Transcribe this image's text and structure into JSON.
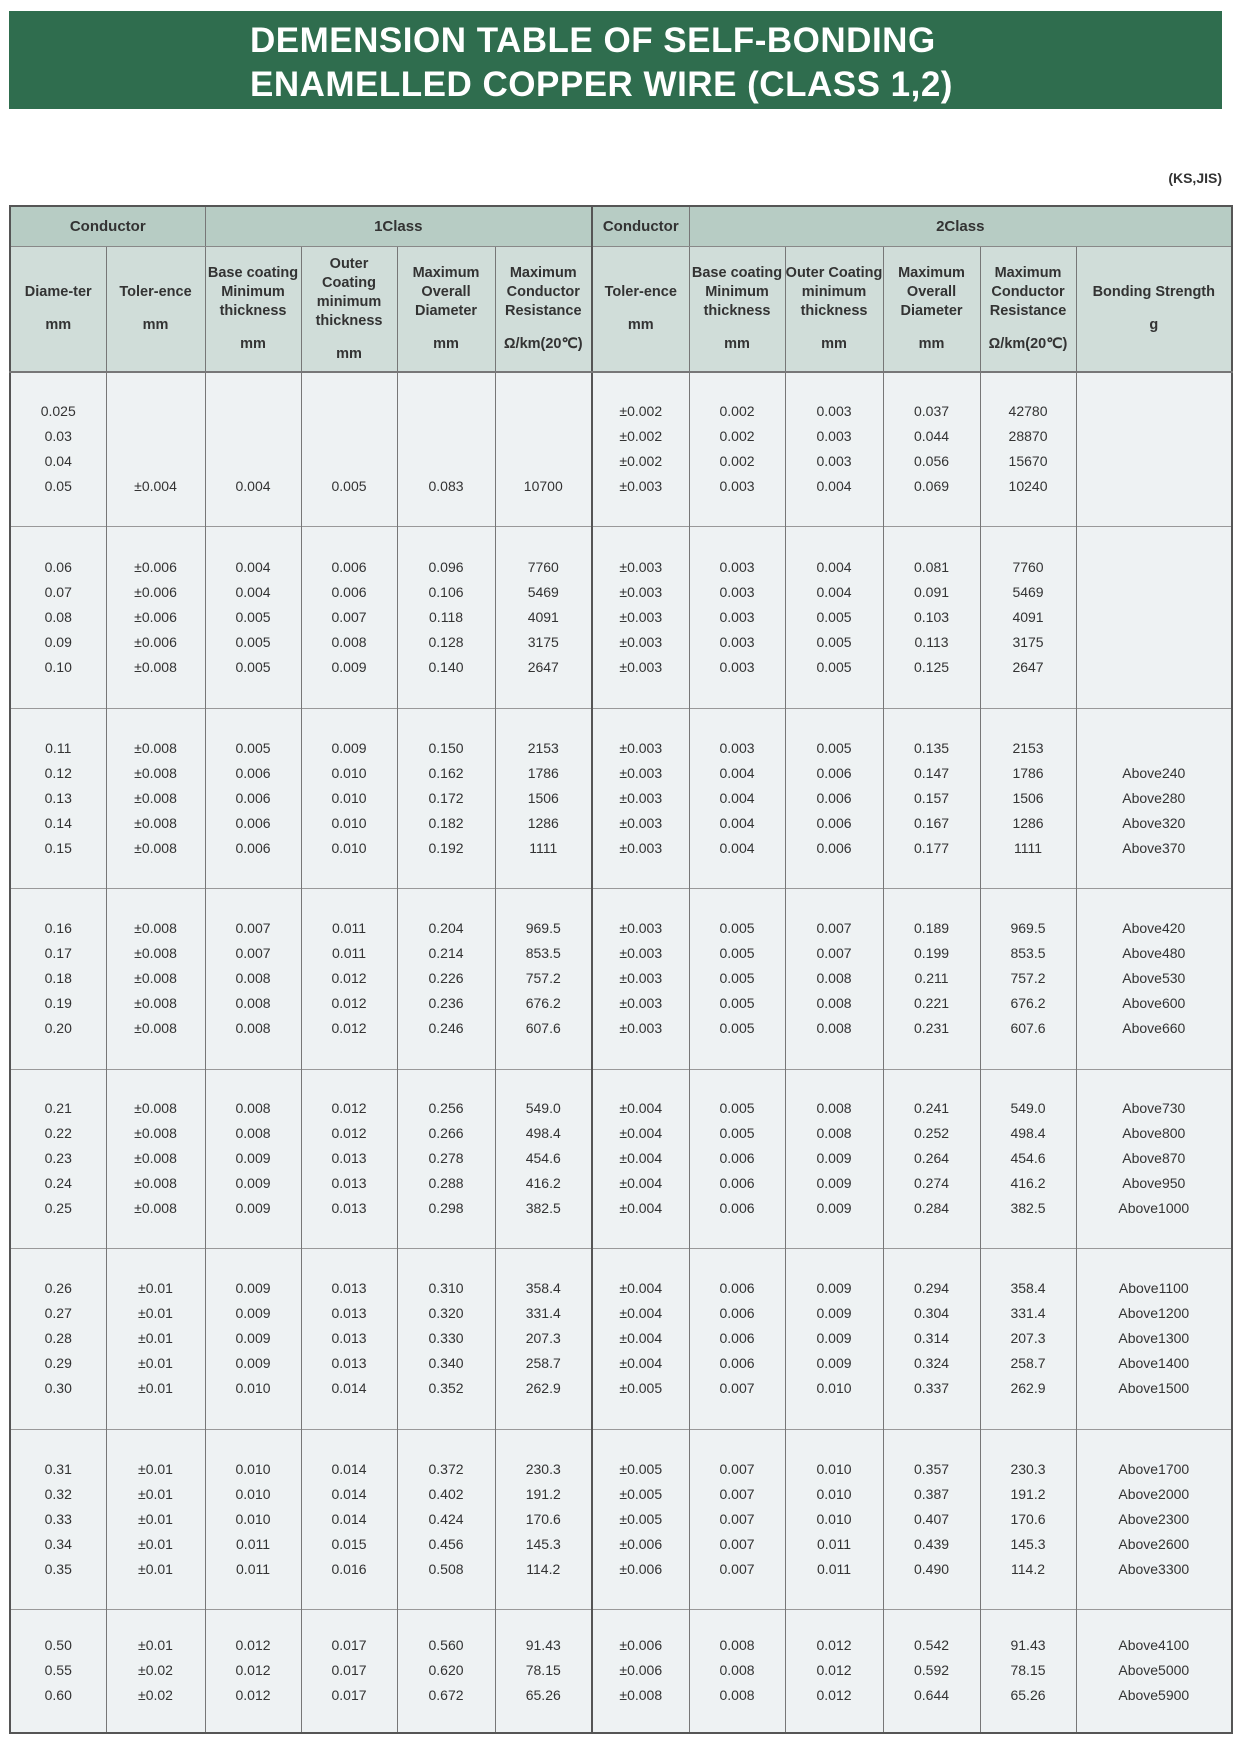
{
  "title": {
    "line1": "DEMENSION TABLE OF SELF-BONDING",
    "line2": "ENAMELLED COPPER WIRE (CLASS 1,2)"
  },
  "standard": "(KS,JIS)",
  "colors": {
    "title_bar": "#2f6d4e",
    "header": "#b7ccc4",
    "subheader": "#d0ddd9",
    "body": "#eef2f3"
  },
  "header": {
    "conductor1": "Conductor",
    "class1": "1Class",
    "conductor2": "Conductor",
    "class2": "2Class",
    "columns": [
      {
        "label": "Diame-ter",
        "unit": "mm"
      },
      {
        "label": "Toler-ence",
        "unit": "mm"
      },
      {
        "label": "Base coating Minimum thickness",
        "unit": "mm"
      },
      {
        "label": "Outer Coating minimum thickness",
        "unit": "mm"
      },
      {
        "label": "Maximum Overall Diameter",
        "unit": "mm"
      },
      {
        "label": "Maximum Conductor Resistance",
        "unit": "Ω/km(20℃)"
      },
      {
        "label": "Toler-ence",
        "unit": "mm"
      },
      {
        "label": "Base coating Minimum thickness",
        "unit": "mm"
      },
      {
        "label": "Outer Coating minimum thickness",
        "unit": "mm"
      },
      {
        "label": "Maximum Overall Diameter",
        "unit": "mm"
      },
      {
        "label": "Maximum Conductor Resistance",
        "unit": "Ω/km(20℃)"
      },
      {
        "label": "Bonding Strength",
        "unit": "g"
      }
    ]
  },
  "groups": [
    [
      [
        "0.025",
        "",
        "",
        "",
        "",
        "",
        "±0.002",
        "0.002",
        "0.003",
        "0.037",
        "42780",
        ""
      ],
      [
        "0.03",
        "",
        "",
        "",
        "",
        "",
        "±0.002",
        "0.002",
        "0.003",
        "0.044",
        "28870",
        ""
      ],
      [
        "0.04",
        "",
        "",
        "",
        "",
        "",
        "±0.002",
        "0.002",
        "0.003",
        "0.056",
        "15670",
        ""
      ],
      [
        "0.05",
        "±0.004",
        "0.004",
        "0.005",
        "0.083",
        "10700",
        "±0.003",
        "0.003",
        "0.004",
        "0.069",
        "10240",
        ""
      ]
    ],
    [
      [
        "0.06",
        "±0.006",
        "0.004",
        "0.006",
        "0.096",
        "7760",
        "±0.003",
        "0.003",
        "0.004",
        "0.081",
        "7760",
        ""
      ],
      [
        "0.07",
        "±0.006",
        "0.004",
        "0.006",
        "0.106",
        "5469",
        "±0.003",
        "0.003",
        "0.004",
        "0.091",
        "5469",
        ""
      ],
      [
        "0.08",
        "±0.006",
        "0.005",
        "0.007",
        "0.118",
        "4091",
        "±0.003",
        "0.003",
        "0.005",
        "0.103",
        "4091",
        ""
      ],
      [
        "0.09",
        "±0.006",
        "0.005",
        "0.008",
        "0.128",
        "3175",
        "±0.003",
        "0.003",
        "0.005",
        "0.113",
        "3175",
        ""
      ],
      [
        "0.10",
        "±0.008",
        "0.005",
        "0.009",
        "0.140",
        "2647",
        "±0.003",
        "0.003",
        "0.005",
        "0.125",
        "2647",
        ""
      ]
    ],
    [
      [
        "0.11",
        "±0.008",
        "0.005",
        "0.009",
        "0.150",
        "2153",
        "±0.003",
        "0.003",
        "0.005",
        "0.135",
        "2153",
        ""
      ],
      [
        "0.12",
        "±0.008",
        "0.006",
        "0.010",
        "0.162",
        "1786",
        "±0.003",
        "0.004",
        "0.006",
        "0.147",
        "1786",
        "Above240"
      ],
      [
        "0.13",
        "±0.008",
        "0.006",
        "0.010",
        "0.172",
        "1506",
        "±0.003",
        "0.004",
        "0.006",
        "0.157",
        "1506",
        "Above280"
      ],
      [
        "0.14",
        "±0.008",
        "0.006",
        "0.010",
        "0.182",
        "1286",
        "±0.003",
        "0.004",
        "0.006",
        "0.167",
        "1286",
        "Above320"
      ],
      [
        "0.15",
        "±0.008",
        "0.006",
        "0.010",
        "0.192",
        "1111",
        "±0.003",
        "0.004",
        "0.006",
        "0.177",
        "1111",
        "Above370"
      ]
    ],
    [
      [
        "0.16",
        "±0.008",
        "0.007",
        "0.011",
        "0.204",
        "969.5",
        "±0.003",
        "0.005",
        "0.007",
        "0.189",
        "969.5",
        "Above420"
      ],
      [
        "0.17",
        "±0.008",
        "0.007",
        "0.011",
        "0.214",
        "853.5",
        "±0.003",
        "0.005",
        "0.007",
        "0.199",
        "853.5",
        "Above480"
      ],
      [
        "0.18",
        "±0.008",
        "0.008",
        "0.012",
        "0.226",
        "757.2",
        "±0.003",
        "0.005",
        "0.008",
        "0.211",
        "757.2",
        "Above530"
      ],
      [
        "0.19",
        "±0.008",
        "0.008",
        "0.012",
        "0.236",
        "676.2",
        "±0.003",
        "0.005",
        "0.008",
        "0.221",
        "676.2",
        "Above600"
      ],
      [
        "0.20",
        "±0.008",
        "0.008",
        "0.012",
        "0.246",
        "607.6",
        "±0.003",
        "0.005",
        "0.008",
        "0.231",
        "607.6",
        "Above660"
      ]
    ],
    [
      [
        "0.21",
        "±0.008",
        "0.008",
        "0.012",
        "0.256",
        "549.0",
        "±0.004",
        "0.005",
        "0.008",
        "0.241",
        "549.0",
        "Above730"
      ],
      [
        "0.22",
        "±0.008",
        "0.008",
        "0.012",
        "0.266",
        "498.4",
        "±0.004",
        "0.005",
        "0.008",
        "0.252",
        "498.4",
        "Above800"
      ],
      [
        "0.23",
        "±0.008",
        "0.009",
        "0.013",
        "0.278",
        "454.6",
        "±0.004",
        "0.006",
        "0.009",
        "0.264",
        "454.6",
        "Above870"
      ],
      [
        "0.24",
        "±0.008",
        "0.009",
        "0.013",
        "0.288",
        "416.2",
        "±0.004",
        "0.006",
        "0.009",
        "0.274",
        "416.2",
        "Above950"
      ],
      [
        "0.25",
        "±0.008",
        "0.009",
        "0.013",
        "0.298",
        "382.5",
        "±0.004",
        "0.006",
        "0.009",
        "0.284",
        "382.5",
        "Above1000"
      ]
    ],
    [
      [
        "0.26",
        "±0.01",
        "0.009",
        "0.013",
        "0.310",
        "358.4",
        "±0.004",
        "0.006",
        "0.009",
        "0.294",
        "358.4",
        "Above1100"
      ],
      [
        "0.27",
        "±0.01",
        "0.009",
        "0.013",
        "0.320",
        "331.4",
        "±0.004",
        "0.006",
        "0.009",
        "0.304",
        "331.4",
        "Above1200"
      ],
      [
        "0.28",
        "±0.01",
        "0.009",
        "0.013",
        "0.330",
        "207.3",
        "±0.004",
        "0.006",
        "0.009",
        "0.314",
        "207.3",
        "Above1300"
      ],
      [
        "0.29",
        "±0.01",
        "0.009",
        "0.013",
        "0.340",
        "258.7",
        "±0.004",
        "0.006",
        "0.009",
        "0.324",
        "258.7",
        "Above1400"
      ],
      [
        "0.30",
        "±0.01",
        "0.010",
        "0.014",
        "0.352",
        "262.9",
        "±0.005",
        "0.007",
        "0.010",
        "0.337",
        "262.9",
        "Above1500"
      ]
    ],
    [
      [
        "0.31",
        "±0.01",
        "0.010",
        "0.014",
        "0.372",
        "230.3",
        "±0.005",
        "0.007",
        "0.010",
        "0.357",
        "230.3",
        "Above1700"
      ],
      [
        "0.32",
        "±0.01",
        "0.010",
        "0.014",
        "0.402",
        "191.2",
        "±0.005",
        "0.007",
        "0.010",
        "0.387",
        "191.2",
        "Above2000"
      ],
      [
        "0.33",
        "±0.01",
        "0.010",
        "0.014",
        "0.424",
        "170.6",
        "±0.005",
        "0.007",
        "0.010",
        "0.407",
        "170.6",
        "Above2300"
      ],
      [
        "0.34",
        "±0.01",
        "0.011",
        "0.015",
        "0.456",
        "145.3",
        "±0.006",
        "0.007",
        "0.011",
        "0.439",
        "145.3",
        "Above2600"
      ],
      [
        "0.35",
        "±0.01",
        "0.011",
        "0.016",
        "0.508",
        "114.2",
        "±0.006",
        "0.007",
        "0.011",
        "0.490",
        "114.2",
        "Above3300"
      ]
    ],
    [
      [
        "0.50",
        "±0.01",
        "0.012",
        "0.017",
        "0.560",
        "91.43",
        "±0.006",
        "0.008",
        "0.012",
        "0.542",
        "91.43",
        "Above4100"
      ],
      [
        "0.55",
        "±0.02",
        "0.012",
        "0.017",
        "0.620",
        "78.15",
        "±0.006",
        "0.008",
        "0.012",
        "0.592",
        "78.15",
        "Above5000"
      ],
      [
        "0.60",
        "±0.02",
        "0.012",
        "0.017",
        "0.672",
        "65.26",
        "±0.008",
        "0.008",
        "0.012",
        "0.644",
        "65.26",
        "Above5900"
      ]
    ]
  ]
}
